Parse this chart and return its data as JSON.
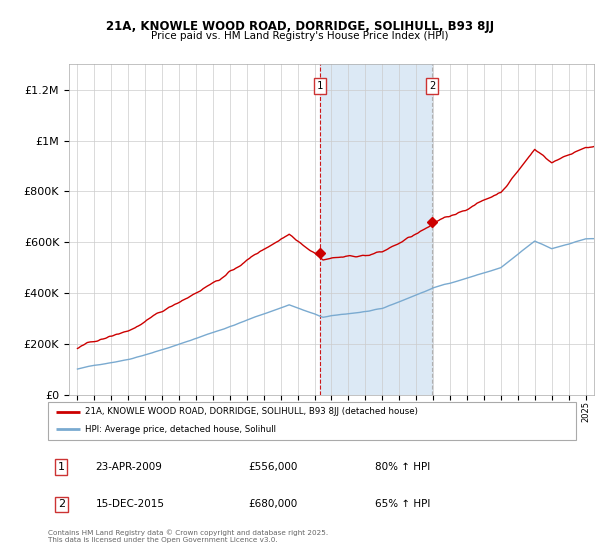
{
  "title_line1": "21A, KNOWLE WOOD ROAD, DORRIDGE, SOLIHULL, B93 8JJ",
  "title_line2": "Price paid vs. HM Land Registry's House Price Index (HPI)",
  "legend_line1": "21A, KNOWLE WOOD ROAD, DORRIDGE, SOLIHULL, B93 8JJ (detached house)",
  "legend_line2": "HPI: Average price, detached house, Solihull",
  "annotation1_date": "23-APR-2009",
  "annotation1_price": "£556,000",
  "annotation1_hpi": "80% ↑ HPI",
  "annotation2_date": "15-DEC-2015",
  "annotation2_price": "£680,000",
  "annotation2_hpi": "65% ↑ HPI",
  "footnote": "Contains HM Land Registry data © Crown copyright and database right 2025.\nThis data is licensed under the Open Government Licence v3.0.",
  "sale1_year": 2009.31,
  "sale1_price": 556000,
  "sale2_year": 2015.96,
  "sale2_price": 680000,
  "house_color": "#cc0000",
  "hpi_color": "#7aaad0",
  "background_color": "#ffffff",
  "shaded_color": "#dce9f5",
  "ylim_max": 1300000,
  "ytick_interval": 200000,
  "xlim_start": 1994.5,
  "xlim_end": 2025.5
}
